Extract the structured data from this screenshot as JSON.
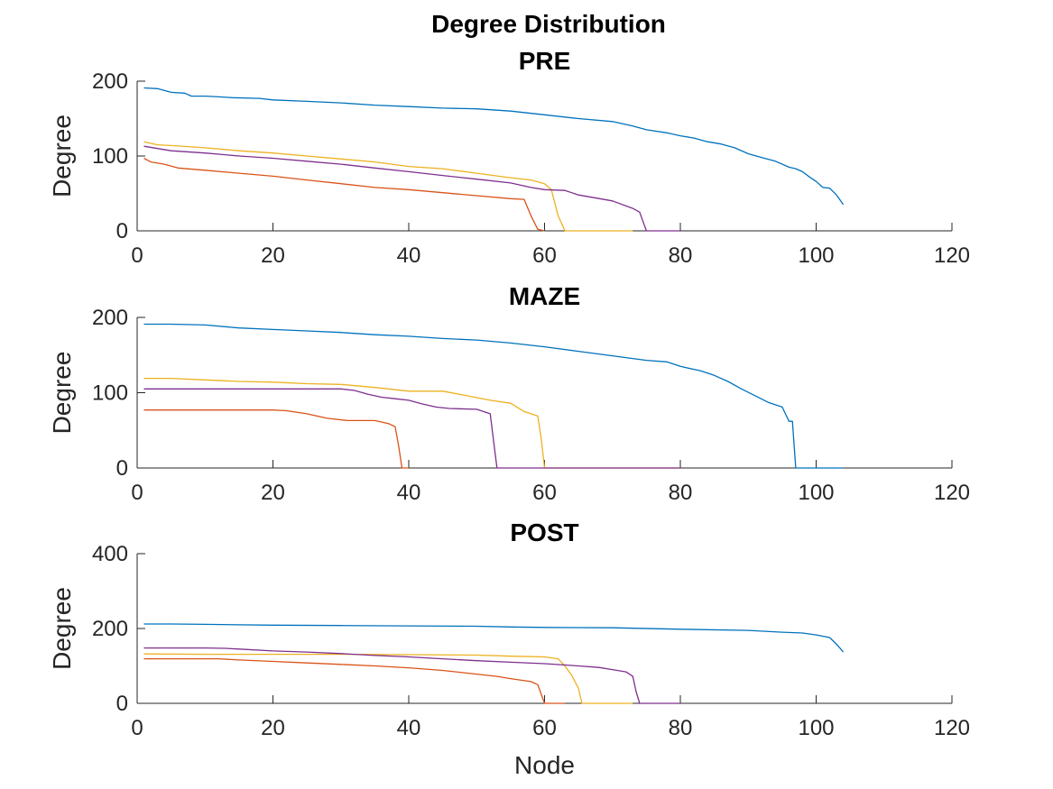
{
  "figure": {
    "title": "Degree Distribution"
  },
  "colors": {
    "s1": "#0072BD",
    "s2": "#D95319",
    "s3": "#EDB120",
    "s4": "#7E2F8E"
  },
  "chart_data": [
    {
      "type": "line",
      "title": "PRE",
      "xlabel": "",
      "ylabel": "Degree",
      "xlim": [
        0,
        120
      ],
      "ylim": [
        0,
        200
      ],
      "xticks": [
        0,
        20,
        40,
        60,
        80,
        100,
        120
      ],
      "yticks": [
        0,
        100,
        200
      ],
      "grid": false,
      "series": [
        {
          "color": "#0072BD",
          "points": [
            [
              1,
              191
            ],
            [
              3,
              190
            ],
            [
              5,
              185
            ],
            [
              7,
              184
            ],
            [
              8,
              180
            ],
            [
              10,
              180
            ],
            [
              12,
              179
            ],
            [
              14,
              178
            ],
            [
              18,
              177
            ],
            [
              20,
              175
            ],
            [
              25,
              173
            ],
            [
              30,
              171
            ],
            [
              35,
              168
            ],
            [
              40,
              166
            ],
            [
              45,
              164
            ],
            [
              50,
              163
            ],
            [
              55,
              160
            ],
            [
              60,
              155
            ],
            [
              65,
              150
            ],
            [
              70,
              146
            ],
            [
              73,
              140
            ],
            [
              75,
              135
            ],
            [
              78,
              131
            ],
            [
              80,
              127
            ],
            [
              82,
              124
            ],
            [
              84,
              119
            ],
            [
              86,
              116
            ],
            [
              88,
              111
            ],
            [
              90,
              103
            ],
            [
              92,
              98
            ],
            [
              94,
              93
            ],
            [
              96,
              85
            ],
            [
              97,
              83
            ],
            [
              98,
              79
            ],
            [
              99,
              72
            ],
            [
              100,
              66
            ],
            [
              101,
              58
            ],
            [
              102,
              57
            ],
            [
              103,
              48
            ],
            [
              104,
              35
            ]
          ]
        },
        {
          "color": "#D95319",
          "points": [
            [
              1,
              97
            ],
            [
              2,
              92
            ],
            [
              4,
              89
            ],
            [
              6,
              84
            ],
            [
              10,
              81
            ],
            [
              15,
              77
            ],
            [
              20,
              73
            ],
            [
              25,
              68
            ],
            [
              30,
              63
            ],
            [
              35,
              58
            ],
            [
              40,
              55
            ],
            [
              45,
              51
            ],
            [
              50,
              47
            ],
            [
              55,
              43
            ],
            [
              57,
              42
            ],
            [
              58,
              20
            ],
            [
              59,
              2
            ],
            [
              60,
              0
            ]
          ]
        },
        {
          "color": "#EDB120",
          "points": [
            [
              1,
              119
            ],
            [
              3,
              115
            ],
            [
              5,
              114
            ],
            [
              10,
              111
            ],
            [
              15,
              107
            ],
            [
              20,
              104
            ],
            [
              25,
              100
            ],
            [
              30,
              96
            ],
            [
              35,
              92
            ],
            [
              40,
              86
            ],
            [
              45,
              83
            ],
            [
              50,
              77
            ],
            [
              55,
              71
            ],
            [
              58,
              68
            ],
            [
              60,
              63
            ],
            [
              61,
              55
            ],
            [
              62,
              20
            ],
            [
              63,
              0
            ],
            [
              73,
              0
            ]
          ]
        },
        {
          "color": "#7E2F8E",
          "points": [
            [
              1,
              113
            ],
            [
              3,
              110
            ],
            [
              5,
              107
            ],
            [
              10,
              104
            ],
            [
              15,
              100
            ],
            [
              20,
              97
            ],
            [
              25,
              93
            ],
            [
              30,
              89
            ],
            [
              35,
              84
            ],
            [
              40,
              79
            ],
            [
              45,
              74
            ],
            [
              50,
              69
            ],
            [
              55,
              64
            ],
            [
              58,
              58
            ],
            [
              60,
              55
            ],
            [
              63,
              54
            ],
            [
              65,
              48
            ],
            [
              70,
              40
            ],
            [
              73,
              30
            ],
            [
              74,
              25
            ],
            [
              75,
              0
            ],
            [
              80,
              0
            ]
          ]
        }
      ]
    },
    {
      "type": "line",
      "title": "MAZE",
      "xlabel": "",
      "ylabel": "Degree",
      "xlim": [
        0,
        120
      ],
      "ylim": [
        0,
        200
      ],
      "xticks": [
        0,
        20,
        40,
        60,
        80,
        100,
        120
      ],
      "yticks": [
        0,
        100,
        200
      ],
      "grid": false,
      "series": [
        {
          "color": "#0072BD",
          "points": [
            [
              1,
              191
            ],
            [
              5,
              191
            ],
            [
              10,
              190
            ],
            [
              15,
              186
            ],
            [
              20,
              184
            ],
            [
              25,
              182
            ],
            [
              30,
              180
            ],
            [
              35,
              177
            ],
            [
              40,
              175
            ],
            [
              45,
              172
            ],
            [
              50,
              170
            ],
            [
              55,
              166
            ],
            [
              60,
              161
            ],
            [
              65,
              155
            ],
            [
              70,
              149
            ],
            [
              75,
              143
            ],
            [
              78,
              141
            ],
            [
              80,
              135
            ],
            [
              83,
              129
            ],
            [
              85,
              123
            ],
            [
              87,
              115
            ],
            [
              89,
              105
            ],
            [
              91,
              96
            ],
            [
              93,
              87
            ],
            [
              95,
              81
            ],
            [
              96,
              62
            ],
            [
              96.5,
              62
            ],
            [
              97,
              0
            ],
            [
              104,
              0
            ]
          ]
        },
        {
          "color": "#D95319",
          "points": [
            [
              1,
              77
            ],
            [
              5,
              77
            ],
            [
              10,
              77
            ],
            [
              15,
              77
            ],
            [
              20,
              77
            ],
            [
              22,
              76
            ],
            [
              25,
              72
            ],
            [
              28,
              66
            ],
            [
              31,
              63
            ],
            [
              35,
              63
            ],
            [
              37,
              59
            ],
            [
              38,
              55
            ],
            [
              38.5,
              30
            ],
            [
              39,
              0
            ],
            [
              40,
              0
            ]
          ]
        },
        {
          "color": "#EDB120",
          "points": [
            [
              1,
              119
            ],
            [
              5,
              119
            ],
            [
              10,
              117
            ],
            [
              15,
              115
            ],
            [
              20,
              114
            ],
            [
              25,
              112
            ],
            [
              30,
              111
            ],
            [
              35,
              107
            ],
            [
              40,
              102
            ],
            [
              45,
              102
            ],
            [
              48,
              97
            ],
            [
              52,
              90
            ],
            [
              55,
              86
            ],
            [
              57,
              75
            ],
            [
              59,
              69
            ],
            [
              59.5,
              40
            ],
            [
              60,
              0
            ],
            [
              80,
              0
            ]
          ]
        },
        {
          "color": "#7E2F8E",
          "points": [
            [
              1,
              105
            ],
            [
              5,
              105
            ],
            [
              10,
              105
            ],
            [
              15,
              105
            ],
            [
              20,
              105
            ],
            [
              25,
              105
            ],
            [
              30,
              105
            ],
            [
              32,
              103
            ],
            [
              34,
              98
            ],
            [
              36,
              94
            ],
            [
              38,
              92
            ],
            [
              40,
              90
            ],
            [
              42,
              85
            ],
            [
              44,
              81
            ],
            [
              46,
              79
            ],
            [
              50,
              78
            ],
            [
              52,
              72
            ],
            [
              52.5,
              35
            ],
            [
              53,
              0
            ],
            [
              80,
              0
            ]
          ]
        }
      ]
    },
    {
      "type": "line",
      "title": "POST",
      "xlabel": "Node",
      "ylabel": "Degree",
      "xlim": [
        0,
        120
      ],
      "ylim": [
        0,
        400
      ],
      "xticks": [
        0,
        20,
        40,
        60,
        80,
        100,
        120
      ],
      "yticks": [
        0,
        200,
        400
      ],
      "grid": false,
      "series": [
        {
          "color": "#0072BD",
          "points": [
            [
              1,
              212
            ],
            [
              5,
              212
            ],
            [
              10,
              211
            ],
            [
              15,
              210
            ],
            [
              20,
              209
            ],
            [
              30,
              208
            ],
            [
              40,
              207
            ],
            [
              50,
              206
            ],
            [
              55,
              204
            ],
            [
              60,
              203
            ],
            [
              70,
              202
            ],
            [
              80,
              198
            ],
            [
              90,
              195
            ],
            [
              95,
              190
            ],
            [
              98,
              188
            ],
            [
              100,
              183
            ],
            [
              102,
              176
            ],
            [
              103,
              158
            ],
            [
              104,
              137
            ]
          ]
        },
        {
          "color": "#D95319",
          "points": [
            [
              1,
              119
            ],
            [
              5,
              119
            ],
            [
              12,
              119
            ],
            [
              15,
              116
            ],
            [
              20,
              112
            ],
            [
              25,
              108
            ],
            [
              30,
              104
            ],
            [
              35,
              100
            ],
            [
              40,
              95
            ],
            [
              45,
              88
            ],
            [
              50,
              78
            ],
            [
              53,
              72
            ],
            [
              55,
              66
            ],
            [
              58,
              58
            ],
            [
              59,
              50
            ],
            [
              59.5,
              25
            ],
            [
              60,
              0
            ],
            [
              63,
              0
            ]
          ]
        },
        {
          "color": "#EDB120",
          "points": [
            [
              1,
              132
            ],
            [
              10,
              131
            ],
            [
              15,
              131
            ],
            [
              20,
              131
            ],
            [
              30,
              131
            ],
            [
              40,
              130
            ],
            [
              50,
              129
            ],
            [
              55,
              126
            ],
            [
              60,
              124
            ],
            [
              62,
              119
            ],
            [
              63,
              100
            ],
            [
              64,
              75
            ],
            [
              65,
              40
            ],
            [
              65.5,
              0
            ],
            [
              66,
              0
            ],
            [
              73,
              0
            ]
          ]
        },
        {
          "color": "#7E2F8E",
          "points": [
            [
              1,
              148
            ],
            [
              5,
              148
            ],
            [
              10,
              148
            ],
            [
              13,
              147
            ],
            [
              15,
              145
            ],
            [
              20,
              140
            ],
            [
              25,
              137
            ],
            [
              30,
              133
            ],
            [
              35,
              128
            ],
            [
              40,
              124
            ],
            [
              45,
              119
            ],
            [
              50,
              114
            ],
            [
              55,
              110
            ],
            [
              60,
              106
            ],
            [
              65,
              100
            ],
            [
              68,
              96
            ],
            [
              70,
              90
            ],
            [
              72,
              84
            ],
            [
              73,
              72
            ],
            [
              73.5,
              30
            ],
            [
              74,
              0
            ],
            [
              80,
              0
            ]
          ]
        }
      ]
    }
  ]
}
